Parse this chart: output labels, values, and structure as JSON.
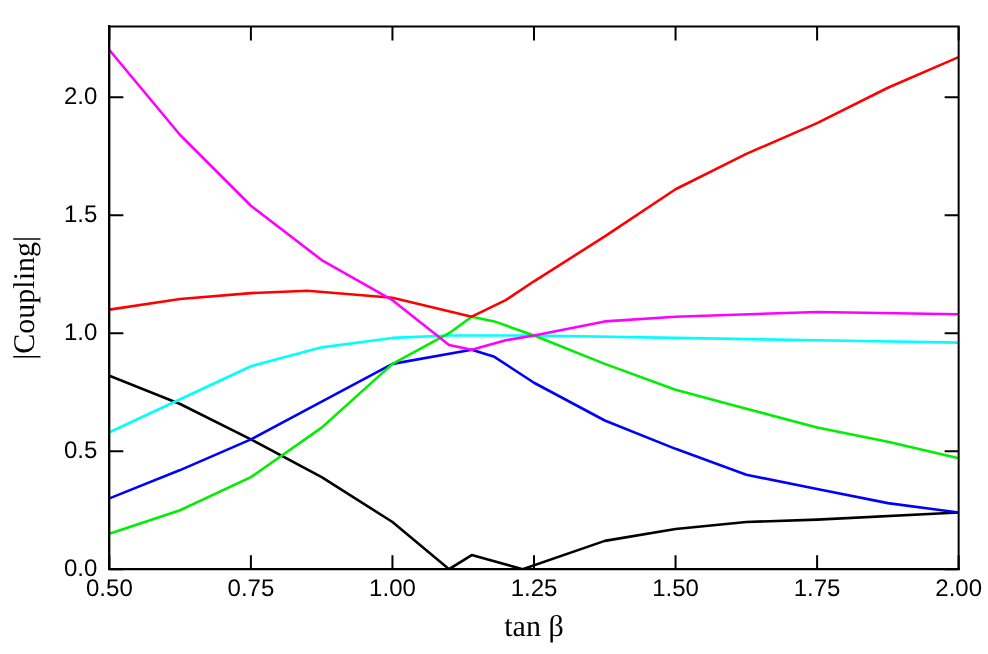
{
  "chart_data": {
    "type": "line",
    "xlabel": "tan β",
    "ylabel": "|Coupling|",
    "xlim": [
      0.5,
      2.0
    ],
    "ylim": [
      0,
      2.3
    ],
    "xticks": [
      {
        "value": 0.5,
        "label": "0.50"
      },
      {
        "value": 0.75,
        "label": "0.75"
      },
      {
        "value": 1.0,
        "label": "1.00"
      },
      {
        "value": 1.25,
        "label": "1.25"
      },
      {
        "value": 1.5,
        "label": "1.50"
      },
      {
        "value": 1.75,
        "label": "1.75"
      },
      {
        "value": 2.0,
        "label": "2.00"
      }
    ],
    "yticks": [
      {
        "value": 0,
        "label": "0.0"
      },
      {
        "value": 0.5,
        "label": "0.5"
      },
      {
        "value": 1.0,
        "label": "1.0"
      },
      {
        "value": 1.5,
        "label": "1.5"
      },
      {
        "value": 2.0,
        "label": "2.0"
      }
    ],
    "grid": false,
    "legend": false,
    "marker": "none",
    "line_style": "solid",
    "series": [
      {
        "color": "#ff00ff",
        "x": [
          0.5,
          0.625,
          0.75,
          0.875,
          1.0,
          1.1,
          1.14,
          1.2,
          1.25,
          1.375,
          1.5,
          1.75,
          2.0
        ],
        "values": [
          2.2,
          1.84,
          1.54,
          1.31,
          1.14,
          0.95,
          0.93,
          0.97,
          0.99,
          1.05,
          1.07,
          1.09,
          1.08
        ]
      },
      {
        "color": "#ff0000",
        "x": [
          0.5,
          0.625,
          0.75,
          0.85,
          1.0,
          1.14,
          1.2,
          1.25,
          1.375,
          1.5,
          1.625,
          1.75,
          1.875,
          2.0
        ],
        "values": [
          1.1,
          1.145,
          1.17,
          1.18,
          1.15,
          1.07,
          1.14,
          1.22,
          1.41,
          1.61,
          1.76,
          1.89,
          2.04,
          2.17
        ]
      },
      {
        "color": "#00ee00",
        "x": [
          0.5,
          0.625,
          0.75,
          0.875,
          1.0,
          1.1,
          1.14,
          1.18,
          1.25,
          1.375,
          1.5,
          1.625,
          1.75,
          1.875,
          2.0
        ],
        "values": [
          0.15,
          0.25,
          0.39,
          0.6,
          0.87,
          1.0,
          1.07,
          1.05,
          0.99,
          0.87,
          0.76,
          0.68,
          0.6,
          0.54,
          0.47
        ]
      },
      {
        "color": "#00ffff",
        "x": [
          0.5,
          0.625,
          0.75,
          0.875,
          1.0,
          1.1,
          1.25,
          1.5,
          1.75,
          2.0
        ],
        "values": [
          0.58,
          0.72,
          0.86,
          0.94,
          0.98,
          0.99,
          0.99,
          0.98,
          0.97,
          0.96
        ]
      },
      {
        "color": "#0000ff",
        "x": [
          0.5,
          0.625,
          0.75,
          0.875,
          1.0,
          1.14,
          1.18,
          1.25,
          1.375,
          1.5,
          1.625,
          1.75,
          1.875,
          2.0
        ],
        "values": [
          0.3,
          0.42,
          0.55,
          0.71,
          0.87,
          0.93,
          0.9,
          0.79,
          0.63,
          0.51,
          0.4,
          0.34,
          0.28,
          0.24
        ]
      },
      {
        "color": "#000000",
        "x": [
          0.5,
          0.625,
          0.75,
          0.875,
          1.0,
          1.1,
          1.14,
          1.23,
          1.375,
          1.5,
          1.625,
          1.75,
          2.0
        ],
        "values": [
          0.82,
          0.7,
          0.55,
          0.39,
          0.2,
          0,
          0.06,
          0,
          0.12,
          0.17,
          0.2,
          0.21,
          0.24
        ]
      }
    ]
  }
}
